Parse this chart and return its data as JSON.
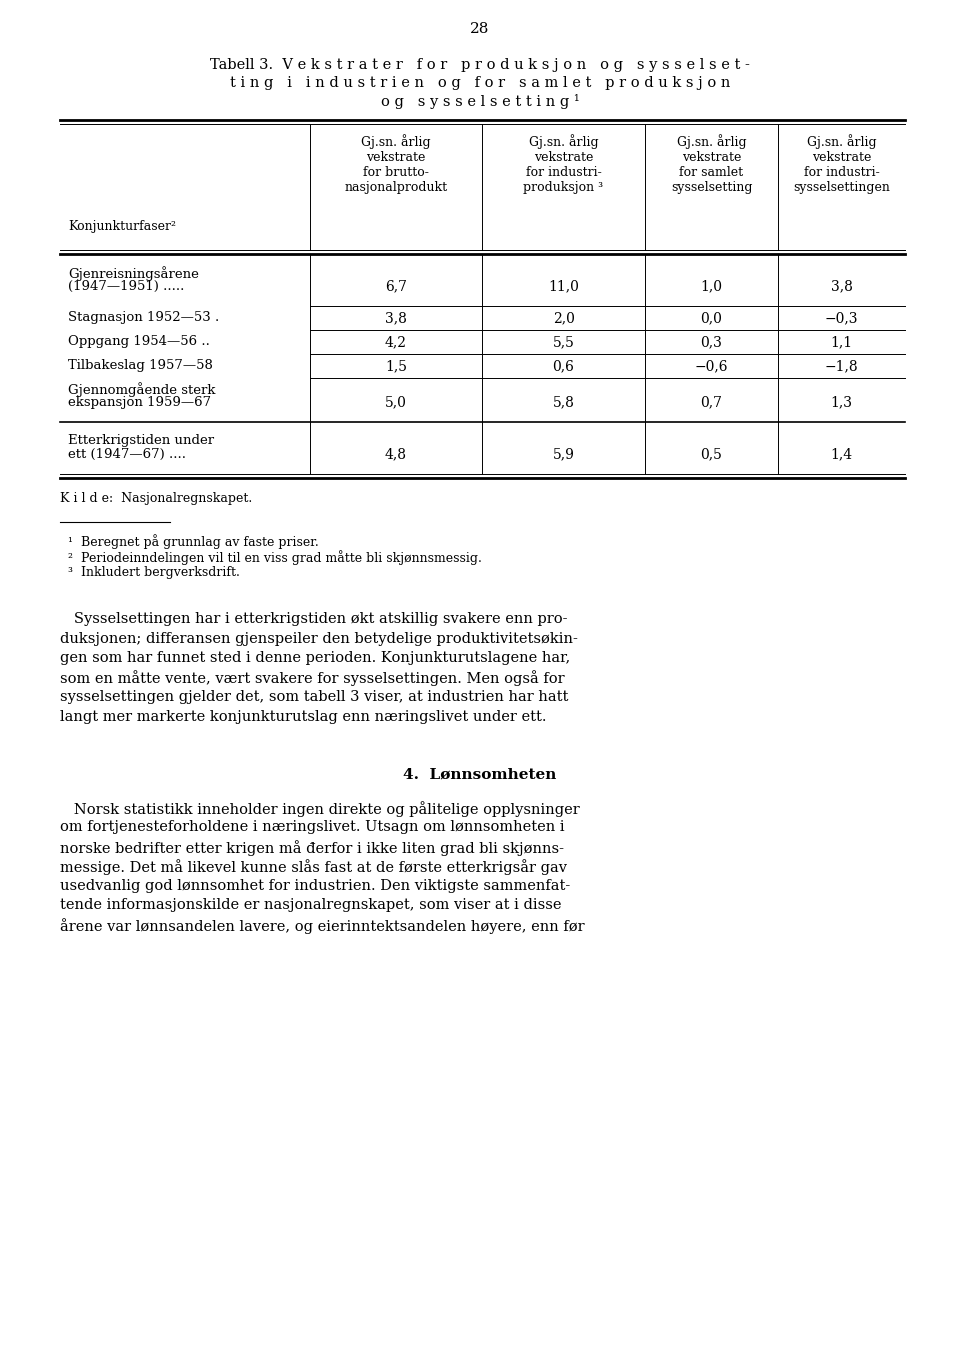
{
  "page_number": "28",
  "title_line1": "Tabell 3.  V e k s t r a t e r   f o r   p r o d u k s j o n   o g   s y s s e l s e t -",
  "title_line2": "t i n g   i   i n d u s t r i e n   o g   f o r   s a m l e t   p r o d u k s j o n",
  "title_line3": "o g   s y s s e l s e t t i n g ¹",
  "col0_header": "Konjunkturfaser²",
  "col1_header": "Gj.sn. årlig\nvekstrate\nfor brutto-\nnasjonalprodukt",
  "col2_header": "Gj.sn. årlig\nvekstrate\nfor industri-\nproduksjon ³",
  "col3_header": "Gj.sn. årlig\nvekstrate\nfor samlet\nsysselsetting",
  "col4_header": "Gj.sn. årlig\nvekstrate\nfor industri-\nsysselsettingen",
  "rows": [
    {
      "l1": "Gjenreisningsårene",
      "l2": "(1947—1951) .....",
      "values": [
        "6,7",
        "11,0",
        "1,0",
        "3,8"
      ],
      "two_line": true
    },
    {
      "l1": "Stagnasjon 1952—53 .",
      "l2": "",
      "values": [
        "3,8",
        "2,0",
        "0,0",
        "−0,3"
      ],
      "two_line": false
    },
    {
      "l1": "Oppgang 1954—56 ..",
      "l2": "",
      "values": [
        "4,2",
        "5,5",
        "0,3",
        "1,1"
      ],
      "two_line": false
    },
    {
      "l1": "Tilbakeslag 1957—58",
      "l2": "",
      "values": [
        "1,5",
        "0,6",
        "−0,6",
        "−1,8"
      ],
      "two_line": false
    },
    {
      "l1": "Gjennomgående sterk",
      "l2": "ekspansjon 1959—67",
      "values": [
        "5,0",
        "5,8",
        "0,7",
        "1,3"
      ],
      "two_line": true
    }
  ],
  "footer_l1": "Etterkrigstiden under",
  "footer_l2": "ett (1947—67) ....",
  "footer_values": [
    "4,8",
    "5,9",
    "0,5",
    "1,4"
  ],
  "kilde": "K i l d e:  Nasjonalregnskapet.",
  "footnote1": "¹  Beregnet på grunnlag av faste priser.",
  "footnote2": "²  Periodeinndelingen vil til en viss grad måtte bli skjønnsmessig.",
  "footnote3": "³  Inkludert bergverksdrift.",
  "para1": [
    "   Sysselsettingen har i etterkrigstiden økt atskillig svakere enn pro-",
    "duksjonen; differansen gjenspeiler den betydelige produktivitetsøkin-",
    "gen som har funnet sted i denne perioden. Konjunkturutslagene har,",
    "som en måtte vente, vært svakere for sysselsettingen. Men også for",
    "sysselsettingen gjelder det, som tabell 3 viser, at industrien har hatt",
    "langt mer markerte konjunkturutslag enn næringslivet under ett."
  ],
  "section_title": "4.  Lønnsomheten",
  "para2": [
    "   Norsk statistikk inneholder ingen direkte og pålitelige opplysninger",
    "om fortjenesteforholdene i næringslivet. Utsagn om lønnsomheten i",
    "norske bedrifter etter krigen må đerfor i ikke liten grad bli skjønns-",
    "messige. Det må likevel kunne slås fast at de første etterkrigsår gav",
    "usedvanlig god lønnsomhet for industrien. Den viktigste sammenfat-",
    "tende informasjonskilde er nasjonalregnskapet, som viser at i disse",
    "årene var lønnsandelen lavere, og eierinntektsandelen høyere, enn før"
  ]
}
